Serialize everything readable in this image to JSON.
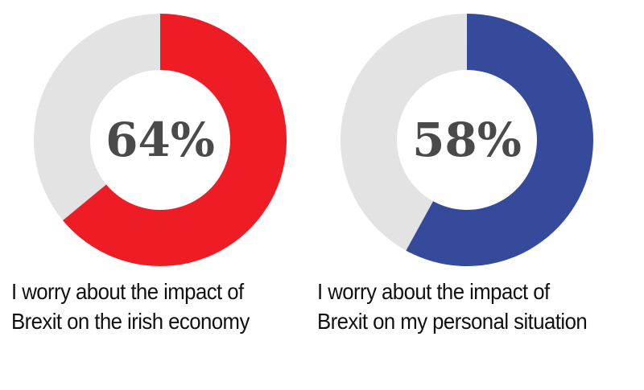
{
  "chart_data": [
    {
      "type": "pie",
      "style": "donut",
      "value_percent": 64,
      "label": "64%",
      "caption": "I worry about the impact of Brexit on the irish economy",
      "color": "#ee1c25",
      "remainder_color": "#e3e3e3"
    },
    {
      "type": "pie",
      "style": "donut",
      "value_percent": 58,
      "label": "58%",
      "caption": "I worry about the impact of Brexit on my personal situation",
      "color": "#364a9c",
      "remainder_color": "#e3e3e3"
    }
  ]
}
